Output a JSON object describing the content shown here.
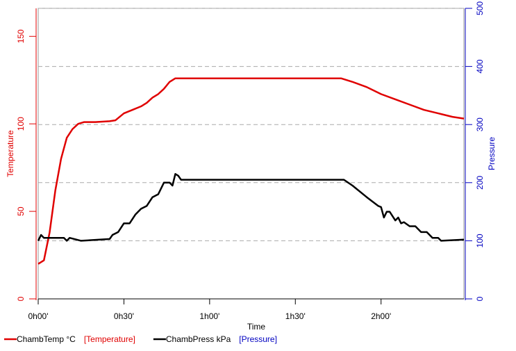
{
  "chart_data": {
    "type": "line",
    "xlabel": "Time",
    "ylabel": "Temperature",
    "y2label": "Pressure",
    "xlim": [
      0,
      149
    ],
    "xticks": [
      {
        "value": 0,
        "label": "0h00'"
      },
      {
        "value": 30,
        "label": "0h30'"
      },
      {
        "value": 60,
        "label": "1h00'"
      },
      {
        "value": 90,
        "label": "1h30'"
      },
      {
        "value": 120,
        "label": "2h00'"
      }
    ],
    "ylim": [
      0,
      166
    ],
    "yticks": [
      0,
      50,
      100,
      150
    ],
    "y2lim": [
      0,
      500
    ],
    "y2ticks": [
      0,
      100,
      200,
      300,
      400,
      500
    ],
    "grid": true,
    "left_axis_color": "#e00000",
    "right_axis_color": "#0000c0",
    "series": [
      {
        "name": "ChambTemp °C",
        "axis_tag": "[Temperature]",
        "color": "#e00000",
        "x": [
          0,
          2,
          4,
          6,
          8,
          10,
          12,
          14,
          16,
          20,
          25,
          27,
          30,
          33,
          36,
          38,
          40,
          42,
          44,
          46,
          48,
          50,
          60,
          106,
          110,
          115,
          120,
          125,
          130,
          135,
          140,
          145,
          149
        ],
        "values": [
          20,
          22,
          38,
          62,
          80,
          92,
          97,
          100,
          101,
          101,
          101.5,
          102,
          106,
          108,
          110,
          112,
          115,
          117,
          120,
          124,
          126,
          126,
          126,
          126,
          124,
          121,
          117,
          114,
          111,
          108,
          106,
          104,
          103
        ]
      },
      {
        "name": "ChambPress kPa",
        "axis_tag": "[Pressure]",
        "color": "#000000",
        "axis": "y2",
        "x": [
          0,
          1,
          2,
          5,
          9,
          10,
          11,
          15,
          25,
          26,
          28,
          30,
          32,
          34,
          36,
          38,
          40,
          42,
          44,
          46,
          47,
          48,
          49,
          50,
          55,
          107,
          110,
          115,
          119,
          120,
          121,
          122,
          123,
          125,
          126,
          127,
          128,
          130,
          132,
          134,
          136,
          138,
          140,
          141,
          149
        ],
        "values": [
          100,
          110,
          105,
          105,
          105,
          100,
          105,
          100,
          103,
          110,
          115,
          130,
          130,
          145,
          155,
          160,
          175,
          180,
          200,
          200,
          195,
          215,
          212,
          205,
          205,
          205,
          195,
          175,
          160,
          158,
          140,
          150,
          150,
          135,
          140,
          130,
          132,
          125,
          125,
          115,
          115,
          105,
          105,
          100,
          102
        ]
      }
    ]
  }
}
